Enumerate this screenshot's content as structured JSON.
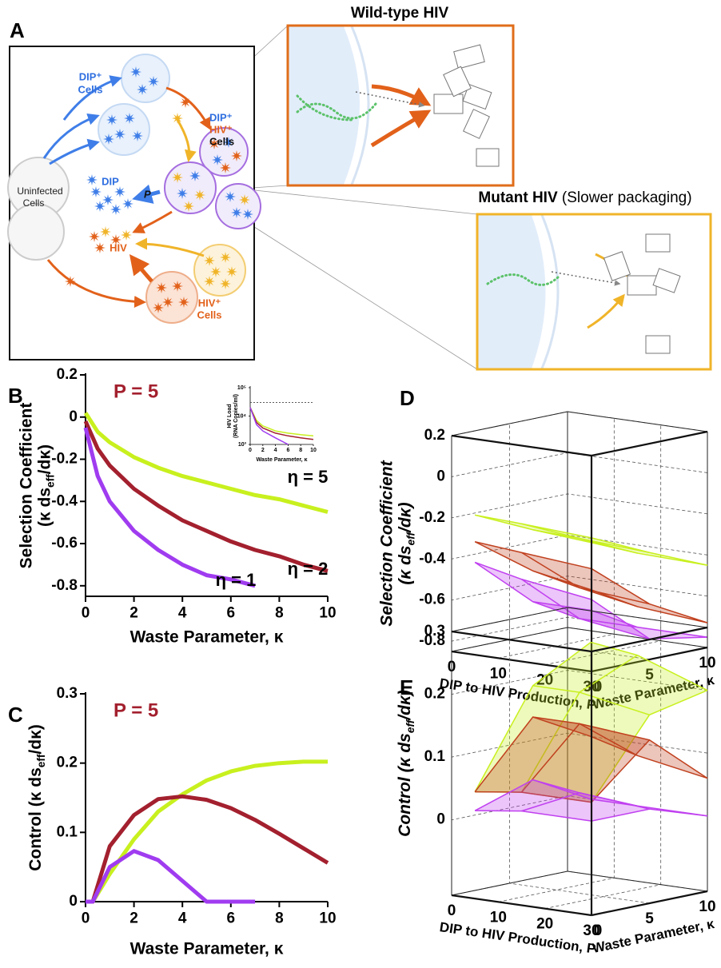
{
  "diagram": {
    "panel": "A",
    "dip_cells": [
      "DIP⁺",
      "Cells"
    ],
    "dip_hiv_cells": [
      "DIP⁺",
      "HIV⁺",
      "Cells"
    ],
    "uninfected_cells": [
      "Uninfected",
      "Cells"
    ],
    "dip": "DIP",
    "p": "P",
    "hiv": "HIV",
    "hiv_cells": [
      "HIV⁺",
      "Cells"
    ],
    "wildtype_title": "Wild-type HIV",
    "mutant_title": "Mutant HIV",
    "mutant_subtitle": "(Slower packaging)"
  },
  "chart_data": [
    {
      "type": "line",
      "panel": "B",
      "title": "P = 5",
      "xlabel": "Waste Parameter, κ",
      "ylabel": [
        [
          "Selection Coefficient"
        ],
        [
          "(κ ds",
          "eff",
          "/dκ)"
        ]
      ],
      "x": [
        0,
        0.5,
        1,
        2,
        3,
        4,
        5,
        6,
        7,
        8,
        9,
        10
      ],
      "series": [
        {
          "color": "#c8f01e",
          "values": [
            0.02,
            -0.07,
            -0.12,
            -0.19,
            -0.24,
            -0.28,
            -0.31,
            -0.34,
            -0.37,
            -0.39,
            -0.42,
            -0.45
          ]
        },
        {
          "color": "#a3202e",
          "values": [
            -0.02,
            -0.15,
            -0.23,
            -0.34,
            -0.42,
            -0.49,
            -0.54,
            -0.59,
            -0.63,
            -0.66,
            -0.7,
            -0.73
          ]
        },
        {
          "color": "#a03cf0",
          "values": [
            -0.05,
            -0.28,
            -0.4,
            -0.54,
            -0.63,
            -0.7,
            -0.75,
            -0.77,
            -0.8,
            null,
            null,
            null
          ]
        }
      ],
      "annotations": [
        "η = 5",
        "η = 2",
        "η = 1"
      ],
      "xlim": [
        0,
        10
      ],
      "xticks": [
        0,
        2,
        4,
        6,
        8,
        10
      ],
      "ylim": [
        -0.85,
        0.2
      ],
      "yticks": [
        0.2,
        0,
        -0.2,
        -0.4,
        -0.6,
        -0.8
      ]
    },
    {
      "type": "line",
      "xlabel": "Waste Parameter, κ",
      "ylabel": [
        [
          "HIV Load"
        ],
        [
          "(RNA Copies/ml)"
        ]
      ],
      "x": [
        0,
        1,
        2,
        4,
        6,
        8,
        10
      ],
      "series": [
        {
          "color": "#c8f01e",
          "values": [
            20000,
            7000,
            4500,
            3000,
            2500,
            2200,
            2000
          ]
        },
        {
          "color": "#a3202e",
          "values": [
            20000,
            6000,
            3800,
            2500,
            2000,
            1700,
            1500
          ]
        },
        {
          "color": "#a03cf0",
          "values": [
            20000,
            5000,
            3000,
            1700,
            1000,
            null,
            null
          ]
        }
      ],
      "reference_line": 30000,
      "log_y": true,
      "xlim": [
        0,
        10
      ],
      "xticks": [
        0,
        2,
        4,
        6,
        8,
        10
      ],
      "ylim": [
        1000,
        100000
      ],
      "yticks": [
        {
          "value": 1000,
          "label": "10³"
        },
        {
          "value": 10000,
          "label": "10⁴"
        },
        {
          "value": 100000,
          "label": "10⁵"
        }
      ]
    },
    {
      "type": "line",
      "panel": "C",
      "title": "P = 5",
      "xlabel": "Waste Parameter, κ",
      "ylabel": [
        [
          "Control (κ ds",
          "eff",
          "/dκ)"
        ]
      ],
      "x": [
        0,
        0.3,
        1,
        2,
        3,
        4,
        5,
        6,
        7,
        8,
        9,
        10
      ],
      "series": [
        {
          "color": "#c8f01e",
          "values": [
            0,
            0,
            0.04,
            0.09,
            0.13,
            0.155,
            0.175,
            0.188,
            0.196,
            0.2,
            0.202,
            0.202
          ]
        },
        {
          "color": "#a3202e",
          "values": [
            0,
            0,
            0.08,
            0.125,
            0.148,
            0.152,
            0.147,
            0.135,
            0.118,
            0.098,
            0.077,
            0.056
          ]
        },
        {
          "color": "#a03cf0",
          "values": [
            0,
            0,
            0.05,
            0.073,
            0.06,
            0.03,
            0,
            0,
            0,
            null,
            null,
            null
          ]
        }
      ],
      "xlim": [
        0,
        10
      ],
      "xticks": [
        0,
        2,
        4,
        6,
        8,
        10
      ],
      "ylim": [
        0,
        0.3
      ],
      "yticks": [
        0,
        0.1,
        0.2,
        0.3
      ]
    },
    {
      "type": "surface3d",
      "panel": "D",
      "xlabel": "DIP to HIV Production, P",
      "x2label": "Waste Parameter, κ",
      "ylabel": [
        [
          "Selection Coefficient"
        ],
        [
          "(κ ds",
          "eff",
          "/dκ)"
        ]
      ],
      "x": [
        5,
        15,
        30
      ],
      "x2": [
        0,
        5,
        10
      ],
      "series": [
        {
          "color": "#c8f01e",
          "values": [
            [
              -0.17,
              -0.3,
              -0.42
            ],
            [
              -0.18,
              -0.31,
              -0.44
            ],
            [
              -0.2,
              -0.33,
              -0.45
            ]
          ]
        },
        {
          "color": "#c0401e",
          "values": [
            [
              -0.3,
              -0.5,
              -0.65
            ],
            [
              -0.32,
              -0.55,
              -0.7
            ],
            [
              -0.35,
              -0.58,
              -0.73
            ]
          ]
        },
        {
          "color": "#c040f0",
          "values": [
            [
              -0.4,
              -0.65,
              -0.75
            ],
            [
              -0.45,
              -0.7,
              -0.8
            ],
            [
              -0.5,
              -0.75,
              -0.8
            ]
          ]
        }
      ],
      "xlim": [
        0,
        30
      ],
      "xticks": [
        0,
        10,
        20,
        30
      ],
      "x2lim": [
        0,
        10
      ],
      "x2ticks": [
        0,
        5,
        10
      ],
      "zlim": [
        -0.85,
        0.2
      ],
      "zticks": [
        0.2,
        0,
        -0.2,
        -0.4,
        -0.6,
        -0.8
      ]
    },
    {
      "type": "surface3d",
      "panel": "E",
      "xlabel": "DIP to HIV Production, P",
      "x2label": "Waste Parameter, κ",
      "ylabel": [
        [
          "Control (κ ds",
          "eff",
          "/dκ)"
        ]
      ],
      "x": [
        5,
        15,
        30
      ],
      "x2": [
        0,
        5,
        10
      ],
      "series": [
        {
          "color": "#c8f01e",
          "values": [
            [
              0.05,
              0.2,
              0.25
            ],
            [
              0.06,
              0.2,
              0.24
            ],
            [
              0.06,
              0.18,
              0.2
            ]
          ]
        },
        {
          "color": "#c0401e",
          "values": [
            [
              0.05,
              0.15,
              0.1
            ],
            [
              0.06,
              0.15,
              0.08
            ],
            [
              0.06,
              0.14,
              0.06
            ]
          ]
        },
        {
          "color": "#c040f0",
          "values": [
            [
              0.02,
              0.05,
              0
            ],
            [
              0.03,
              0.04,
              0
            ],
            [
              0.03,
              0.03,
              0
            ]
          ]
        }
      ],
      "xlim": [
        0,
        30
      ],
      "xticks": [
        0,
        10,
        20,
        30
      ],
      "x2lim": [
        0,
        10
      ],
      "x2ticks": [
        0,
        5,
        10
      ],
      "zlim": [
        -0.12,
        0.3
      ],
      "zticks": [
        0,
        0.1,
        0.2,
        0.3
      ]
    }
  ]
}
